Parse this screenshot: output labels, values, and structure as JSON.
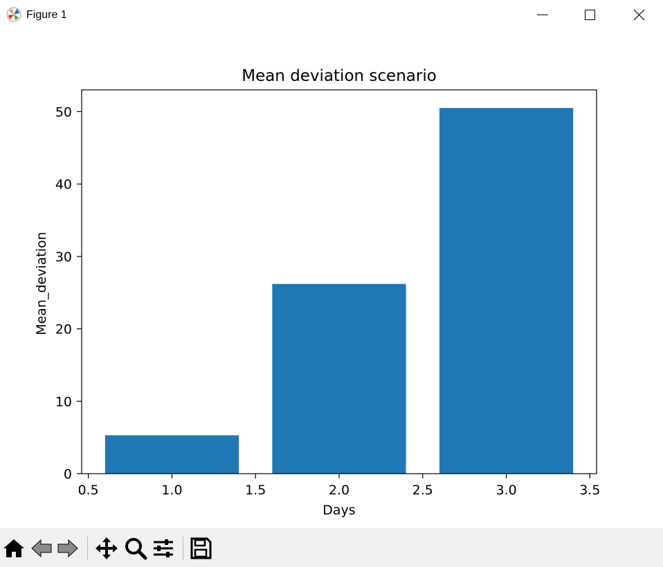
{
  "window": {
    "title": "Figure 1",
    "buttons": {
      "minimize": "minimize",
      "maximize": "maximize",
      "close": "close"
    }
  },
  "toolbar": {
    "tools": [
      "home-icon",
      "back-icon",
      "forward-icon",
      "pan-icon",
      "zoom-icon",
      "configure-subplots-icon",
      "save-icon"
    ]
  },
  "chart_data": {
    "type": "bar",
    "title": "Mean deviation scenario",
    "xlabel": "Days",
    "ylabel": "Mean_deviation",
    "x": [
      1.0,
      2.0,
      3.0
    ],
    "values": [
      5.3,
      26.2,
      50.5
    ],
    "bar_width": 0.8,
    "color": "#1f77b4",
    "xlim": [
      0.46,
      3.54
    ],
    "ylim": [
      0,
      53.0
    ],
    "xticks": [
      0.5,
      1.0,
      1.5,
      2.0,
      2.5,
      3.0,
      3.5
    ],
    "xtick_labels": [
      "0.5",
      "1.0",
      "1.5",
      "2.0",
      "2.5",
      "3.0",
      "3.5"
    ],
    "yticks": [
      0,
      10,
      20,
      30,
      40,
      50
    ],
    "ytick_labels": [
      "0",
      "10",
      "20",
      "30",
      "40",
      "50"
    ],
    "grid": false
  }
}
